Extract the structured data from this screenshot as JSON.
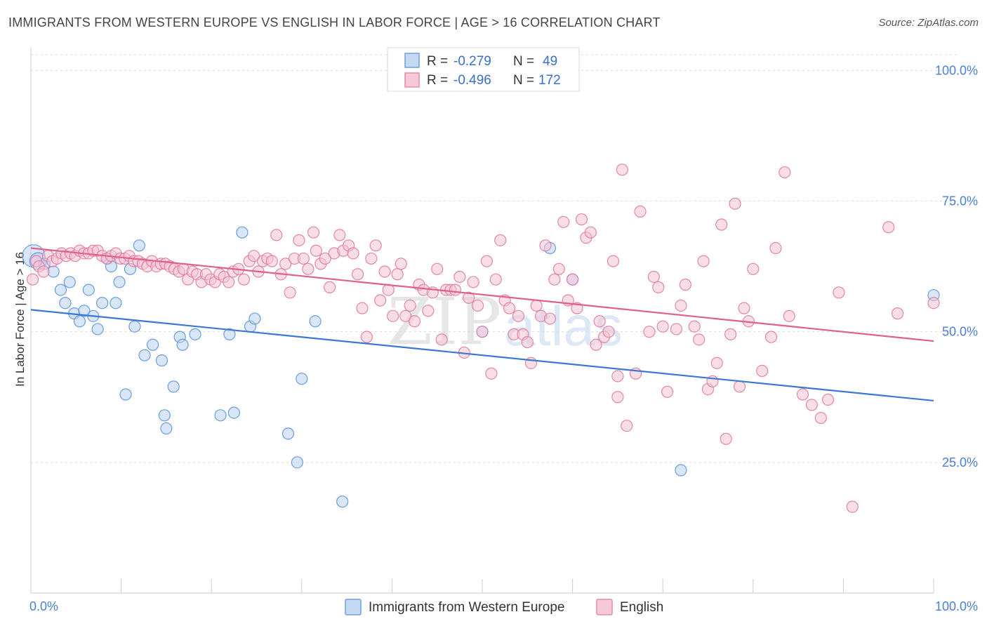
{
  "title": "IMMIGRANTS FROM WESTERN EUROPE VS ENGLISH IN LABOR FORCE | AGE > 16 CORRELATION CHART",
  "source": "Source: ZipAtlas.com",
  "watermark": {
    "zip": "ZIP",
    "atlas": "atlas"
  },
  "legend_box": {
    "rows": [
      {
        "r_label": "R =",
        "r_value": "-0.279",
        "n_label": "N =",
        "n_value": "49",
        "color": "#6fa0e0",
        "fill": "#c5d9f3"
      },
      {
        "r_label": "R =",
        "r_value": "-0.496",
        "n_label": "N =",
        "n_value": "172",
        "color": "#e98aa8",
        "fill": "#f7c9d8"
      }
    ]
  },
  "chart_data": {
    "type": "scatter",
    "xlabel": "",
    "ylabel": "In Labor Force | Age > 16",
    "xlim": [
      0,
      100
    ],
    "ylim": [
      0,
      103
    ],
    "x_tick_labels": [
      {
        "value": 0,
        "label": "0.0%"
      },
      {
        "value": 100,
        "label": "100.0%"
      }
    ],
    "y_tick_labels": [
      {
        "value": 25,
        "label": "25.0%"
      },
      {
        "value": 50,
        "label": "50.0%"
      },
      {
        "value": 75,
        "label": "75.0%"
      },
      {
        "value": 100,
        "label": "100.0%"
      }
    ],
    "grid": "horizontal-dashed",
    "series": [
      {
        "name": "Immigrants from Western Europe",
        "color": "#5b93dc",
        "fill": "#b9d2f2",
        "trend": {
          "x": [
            0,
            100
          ],
          "y": [
            54.2,
            36.8
          ],
          "color": "#3b78d6"
        },
        "points": [
          [
            0.3,
            64.5,
            16
          ],
          [
            0.8,
            63.5,
            12
          ],
          [
            1.5,
            63.0,
            8
          ],
          [
            2.5,
            61.5,
            8
          ],
          [
            3.3,
            58.0,
            8
          ],
          [
            3.8,
            55.5,
            8
          ],
          [
            4.3,
            59.5,
            8
          ],
          [
            4.8,
            53.5,
            8
          ],
          [
            5.4,
            52.0,
            8
          ],
          [
            5.9,
            54.0,
            8
          ],
          [
            6.4,
            58.0,
            8
          ],
          [
            6.9,
            53.0,
            8
          ],
          [
            7.4,
            50.5,
            8
          ],
          [
            7.9,
            55.5,
            8
          ],
          [
            8.5,
            64.0,
            8
          ],
          [
            8.9,
            62.5,
            8
          ],
          [
            9.4,
            55.5,
            8
          ],
          [
            9.8,
            59.5,
            8
          ],
          [
            10.5,
            38.0,
            8
          ],
          [
            11.0,
            62.0,
            8
          ],
          [
            11.5,
            51.0,
            8
          ],
          [
            12.0,
            66.5,
            8
          ],
          [
            12.6,
            45.5,
            8
          ],
          [
            13.5,
            47.5,
            8
          ],
          [
            14.5,
            44.5,
            8
          ],
          [
            14.8,
            34.0,
            8
          ],
          [
            15.0,
            31.5,
            8
          ],
          [
            15.8,
            39.5,
            8
          ],
          [
            16.5,
            49.0,
            8
          ],
          [
            16.8,
            47.5,
            8
          ],
          [
            18.2,
            49.5,
            8
          ],
          [
            21.0,
            34.0,
            8
          ],
          [
            22.0,
            49.5,
            8
          ],
          [
            22.5,
            34.5,
            8
          ],
          [
            23.4,
            69.0,
            8
          ],
          [
            24.3,
            51.0,
            8
          ],
          [
            24.8,
            52.5,
            8
          ],
          [
            28.5,
            30.5,
            8
          ],
          [
            29.5,
            25.0,
            8
          ],
          [
            30.0,
            41.0,
            8
          ],
          [
            31.5,
            52.0,
            8
          ],
          [
            34.5,
            17.5,
            8
          ],
          [
            50.0,
            50.0,
            8
          ],
          [
            57.5,
            66.0,
            8
          ],
          [
            60.0,
            60.0,
            8
          ],
          [
            72.0,
            23.5,
            8
          ],
          [
            100.0,
            57.0,
            8
          ]
        ]
      },
      {
        "name": "English",
        "color": "#e07a9e",
        "fill": "#f5c3d3",
        "trend": {
          "x": [
            0,
            100
          ],
          "y": [
            66.0,
            48.2
          ],
          "color": "#e0608a"
        },
        "points": [
          [
            0.2,
            60.0
          ],
          [
            0.6,
            63.5
          ],
          [
            0.9,
            62.5
          ],
          [
            1.4,
            61.5
          ],
          [
            1.9,
            64.5
          ],
          [
            2.4,
            63.5
          ],
          [
            2.9,
            64.0
          ],
          [
            3.4,
            65.0
          ],
          [
            3.9,
            64.5
          ],
          [
            4.4,
            65.0
          ],
          [
            4.9,
            64.5
          ],
          [
            5.4,
            65.5
          ],
          [
            5.9,
            65.0
          ],
          [
            6.4,
            65.0
          ],
          [
            6.9,
            65.5
          ],
          [
            7.4,
            65.5
          ],
          [
            7.9,
            64.5
          ],
          [
            8.4,
            64.0
          ],
          [
            8.9,
            64.5
          ],
          [
            9.4,
            65.0
          ],
          [
            9.9,
            64.0
          ],
          [
            10.4,
            64.0
          ],
          [
            10.9,
            64.5
          ],
          [
            11.4,
            63.5
          ],
          [
            11.9,
            63.5
          ],
          [
            12.4,
            63.0
          ],
          [
            12.9,
            62.5
          ],
          [
            13.4,
            63.5
          ],
          [
            13.9,
            62.5
          ],
          [
            14.4,
            63.0
          ],
          [
            14.9,
            63.0
          ],
          [
            15.4,
            62.5
          ],
          [
            15.9,
            62.0
          ],
          [
            16.4,
            61.5
          ],
          [
            16.9,
            62.0
          ],
          [
            17.4,
            60.0
          ],
          [
            17.9,
            61.5
          ],
          [
            18.4,
            61.0
          ],
          [
            18.9,
            59.5
          ],
          [
            19.4,
            61.0
          ],
          [
            19.9,
            60.0
          ],
          [
            20.4,
            59.5
          ],
          [
            20.9,
            61.0
          ],
          [
            21.4,
            60.5
          ],
          [
            21.9,
            59.5
          ],
          [
            22.4,
            61.5
          ],
          [
            23.0,
            62.0
          ],
          [
            23.6,
            60.0
          ],
          [
            24.2,
            63.5
          ],
          [
            24.7,
            64.5
          ],
          [
            25.2,
            61.5
          ],
          [
            25.7,
            63.5
          ],
          [
            26.2,
            64.0
          ],
          [
            26.7,
            63.5
          ],
          [
            27.2,
            68.5
          ],
          [
            27.7,
            61.0
          ],
          [
            28.2,
            63.0
          ],
          [
            28.7,
            57.5
          ],
          [
            29.2,
            64.0
          ],
          [
            29.7,
            67.5
          ],
          [
            30.2,
            64.0
          ],
          [
            30.7,
            62.0
          ],
          [
            31.3,
            69.0
          ],
          [
            31.6,
            65.5
          ],
          [
            32.1,
            63.0
          ],
          [
            32.6,
            64.0
          ],
          [
            33.1,
            58.5
          ],
          [
            33.6,
            65.0
          ],
          [
            34.2,
            68.5
          ],
          [
            34.6,
            65.5
          ],
          [
            35.2,
            66.5
          ],
          [
            35.7,
            65.0
          ],
          [
            36.2,
            61.0
          ],
          [
            36.7,
            54.5
          ],
          [
            37.2,
            49.0
          ],
          [
            37.7,
            64.0
          ],
          [
            38.2,
            66.5
          ],
          [
            38.7,
            56.0
          ],
          [
            39.2,
            61.5
          ],
          [
            39.6,
            58.0
          ],
          [
            40.1,
            53.0
          ],
          [
            40.6,
            61.0
          ],
          [
            41.0,
            63.0
          ],
          [
            41.5,
            53.0
          ],
          [
            42.0,
            55.0
          ],
          [
            42.5,
            52.0
          ],
          [
            43.0,
            59.0
          ],
          [
            43.5,
            58.0
          ],
          [
            44.0,
            54.0
          ],
          [
            44.5,
            57.5
          ],
          [
            45.0,
            62.0
          ],
          [
            45.5,
            48.5
          ],
          [
            46.0,
            58.0
          ],
          [
            46.5,
            58.0
          ],
          [
            47.0,
            58.0
          ],
          [
            47.5,
            60.5
          ],
          [
            48.0,
            46.0
          ],
          [
            48.5,
            56.5
          ],
          [
            49.0,
            59.5
          ],
          [
            49.5,
            55.0
          ],
          [
            50.0,
            50.0
          ],
          [
            50.5,
            63.5
          ],
          [
            51.0,
            42.0
          ],
          [
            51.5,
            60.0
          ],
          [
            52.0,
            67.5
          ],
          [
            52.5,
            56.0
          ],
          [
            53.0,
            54.5
          ],
          [
            53.5,
            49.5
          ],
          [
            54.0,
            53.0
          ],
          [
            54.5,
            49.5
          ],
          [
            55.0,
            48.0
          ],
          [
            55.4,
            44.0
          ],
          [
            56.0,
            55.0
          ],
          [
            56.5,
            53.0
          ],
          [
            57.0,
            66.5
          ],
          [
            57.5,
            52.5
          ],
          [
            58.0,
            60.0
          ],
          [
            58.5,
            62.0
          ],
          [
            59.0,
            71.0
          ],
          [
            59.5,
            56.0
          ],
          [
            60.0,
            60.0
          ],
          [
            60.5,
            54.5
          ],
          [
            61.0,
            71.5
          ],
          [
            61.5,
            68.0
          ],
          [
            62.0,
            69.0
          ],
          [
            62.6,
            47.5
          ],
          [
            63.0,
            52.0
          ],
          [
            63.5,
            49.0
          ],
          [
            64.0,
            50.0
          ],
          [
            64.5,
            63.5
          ],
          [
            65.0,
            41.5
          ],
          [
            65.0,
            37.5
          ],
          [
            65.5,
            81.0
          ],
          [
            66.0,
            32.0
          ],
          [
            67.0,
            42.0
          ],
          [
            67.5,
            73.0
          ],
          [
            68.5,
            50.0
          ],
          [
            69.0,
            60.5
          ],
          [
            69.5,
            58.5
          ],
          [
            70.0,
            51.0
          ],
          [
            70.5,
            38.5
          ],
          [
            71.5,
            50.5
          ],
          [
            72.0,
            55.0
          ],
          [
            72.5,
            59.0
          ],
          [
            73.5,
            51.0
          ],
          [
            74.0,
            48.5
          ],
          [
            74.5,
            63.5
          ],
          [
            75.0,
            39.0
          ],
          [
            75.5,
            40.5
          ],
          [
            76.0,
            44.0
          ],
          [
            76.5,
            70.5
          ],
          [
            77.0,
            29.5
          ],
          [
            77.5,
            49.5
          ],
          [
            78.0,
            74.5
          ],
          [
            78.5,
            39.5
          ],
          [
            79.0,
            54.5
          ],
          [
            79.5,
            52.0
          ],
          [
            80.0,
            62.0
          ],
          [
            81.0,
            42.5
          ],
          [
            82.0,
            49.0
          ],
          [
            82.5,
            66.0
          ],
          [
            83.5,
            80.5
          ],
          [
            84.0,
            53.0
          ],
          [
            85.5,
            38.0
          ],
          [
            86.5,
            36.0
          ],
          [
            87.5,
            33.5
          ],
          [
            88.3,
            37.0
          ],
          [
            89.5,
            57.5
          ],
          [
            91.0,
            16.5
          ],
          [
            95.0,
            70.0
          ],
          [
            96.0,
            53.5
          ],
          [
            100.0,
            55.5
          ]
        ]
      }
    ]
  },
  "bottom_legend": [
    {
      "label": "Immigrants from Western Europe",
      "color": "#6fa0e0",
      "fill": "#c5d9f3"
    },
    {
      "label": "English",
      "color": "#e98aa8",
      "fill": "#f7c9d8"
    }
  ]
}
